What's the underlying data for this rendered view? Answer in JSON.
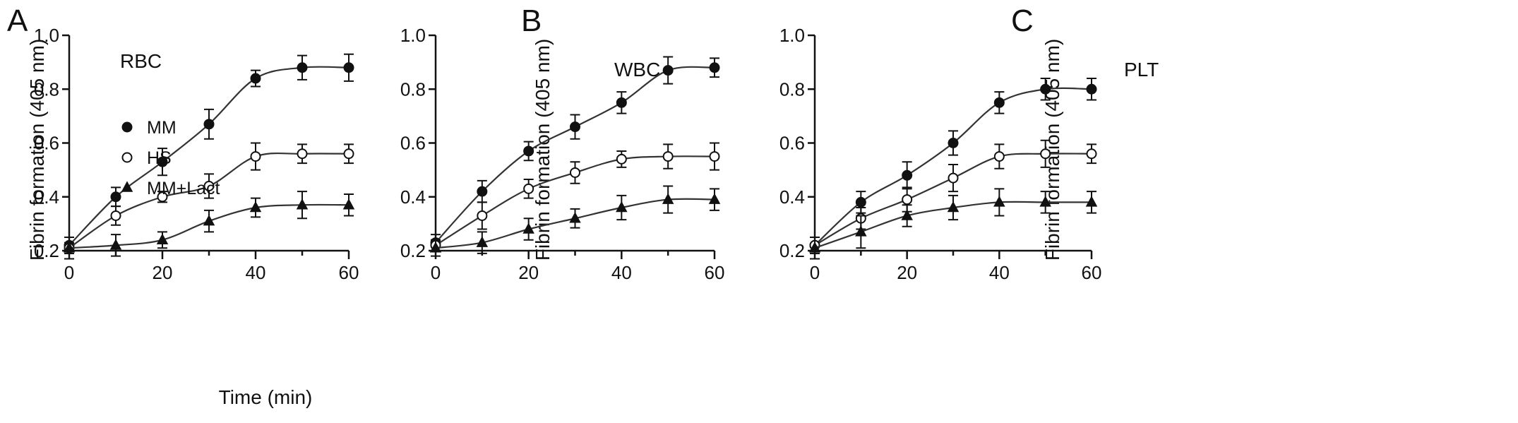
{
  "chart_data": [
    {
      "type": "line",
      "panel_label": "A",
      "inset_label": "RBC",
      "xlabel": "Time (min)",
      "ylabel": "Fibrin formation (405 nm)",
      "xlim": [
        0,
        60
      ],
      "ylim": [
        0.2,
        1.0
      ],
      "xticks": [
        "0",
        "20",
        "40",
        "60"
      ],
      "yticks": [
        "0.2",
        "0.4",
        "0.6",
        "0.8",
        "1.0"
      ],
      "grid": false,
      "legend": "upper-left",
      "legend_entries": [
        "MM",
        "HS",
        "MM+Lact"
      ],
      "x": [
        0,
        10,
        20,
        30,
        40,
        50,
        60
      ],
      "series": [
        {
          "name": "MM",
          "marker": "filled-circle",
          "values": [
            0.22,
            0.4,
            0.53,
            0.67,
            0.84,
            0.88,
            0.88
          ],
          "errors": [
            0.03,
            0.035,
            0.05,
            0.055,
            0.03,
            0.045,
            0.05
          ]
        },
        {
          "name": "HS",
          "marker": "open-circle",
          "values": [
            0.21,
            0.33,
            0.4,
            0.44,
            0.55,
            0.56,
            0.56
          ],
          "errors": [
            0.02,
            0.035,
            0.02,
            0.045,
            0.05,
            0.035,
            0.035
          ]
        },
        {
          "name": "MM+Lact",
          "marker": "filled-triangle",
          "values": [
            0.21,
            0.22,
            0.24,
            0.31,
            0.36,
            0.37,
            0.37
          ],
          "errors": [
            0.04,
            0.04,
            0.03,
            0.04,
            0.035,
            0.05,
            0.04
          ]
        }
      ]
    },
    {
      "type": "line",
      "panel_label": "B",
      "inset_label": "WBC",
      "xlabel": "",
      "ylabel": "Fibrin formation (405 nm)",
      "xlim": [
        0,
        60
      ],
      "ylim": [
        0.2,
        1.0
      ],
      "xticks": [
        "0",
        "20",
        "40",
        "60"
      ],
      "yticks": [
        "0.2",
        "0.4",
        "0.6",
        "0.8",
        "1.0"
      ],
      "grid": false,
      "x": [
        0,
        10,
        20,
        30,
        40,
        50,
        60
      ],
      "series": [
        {
          "name": "MM",
          "marker": "filled-circle",
          "values": [
            0.23,
            0.42,
            0.57,
            0.66,
            0.75,
            0.87,
            0.88
          ],
          "errors": [
            0.03,
            0.04,
            0.035,
            0.045,
            0.04,
            0.05,
            0.035
          ]
        },
        {
          "name": "HS",
          "marker": "open-circle",
          "values": [
            0.22,
            0.33,
            0.43,
            0.49,
            0.54,
            0.55,
            0.55
          ],
          "errors": [
            0.02,
            0.05,
            0.035,
            0.04,
            0.03,
            0.045,
            0.05
          ]
        },
        {
          "name": "MM+Lact",
          "marker": "filled-triangle",
          "values": [
            0.21,
            0.23,
            0.28,
            0.32,
            0.36,
            0.39,
            0.39
          ],
          "errors": [
            0.03,
            0.04,
            0.04,
            0.035,
            0.045,
            0.05,
            0.04
          ]
        }
      ]
    },
    {
      "type": "line",
      "panel_label": "C",
      "inset_label": "PLT",
      "xlabel": "",
      "ylabel": "Fibrin formation (405 nm)",
      "xlim": [
        0,
        60
      ],
      "ylim": [
        0.2,
        1.0
      ],
      "xticks": [
        "0",
        "20",
        "40",
        "60"
      ],
      "yticks": [
        "0.2",
        "0.4",
        "0.6",
        "0.8",
        "1.0"
      ],
      "grid": false,
      "x": [
        0,
        10,
        20,
        30,
        40,
        50,
        60
      ],
      "series": [
        {
          "name": "MM",
          "marker": "filled-circle",
          "values": [
            0.22,
            0.38,
            0.48,
            0.6,
            0.75,
            0.8,
            0.8
          ],
          "errors": [
            0.03,
            0.04,
            0.05,
            0.045,
            0.04,
            0.04,
            0.04
          ]
        },
        {
          "name": "HS",
          "marker": "open-circle",
          "values": [
            0.22,
            0.32,
            0.39,
            0.47,
            0.55,
            0.56,
            0.56
          ],
          "errors": [
            0.03,
            0.04,
            0.045,
            0.05,
            0.045,
            0.05,
            0.035
          ]
        },
        {
          "name": "MM+Lact",
          "marker": "filled-triangle",
          "values": [
            0.21,
            0.27,
            0.33,
            0.36,
            0.38,
            0.38,
            0.38
          ],
          "errors": [
            0.04,
            0.06,
            0.04,
            0.045,
            0.05,
            0.04,
            0.04
          ]
        }
      ]
    }
  ]
}
